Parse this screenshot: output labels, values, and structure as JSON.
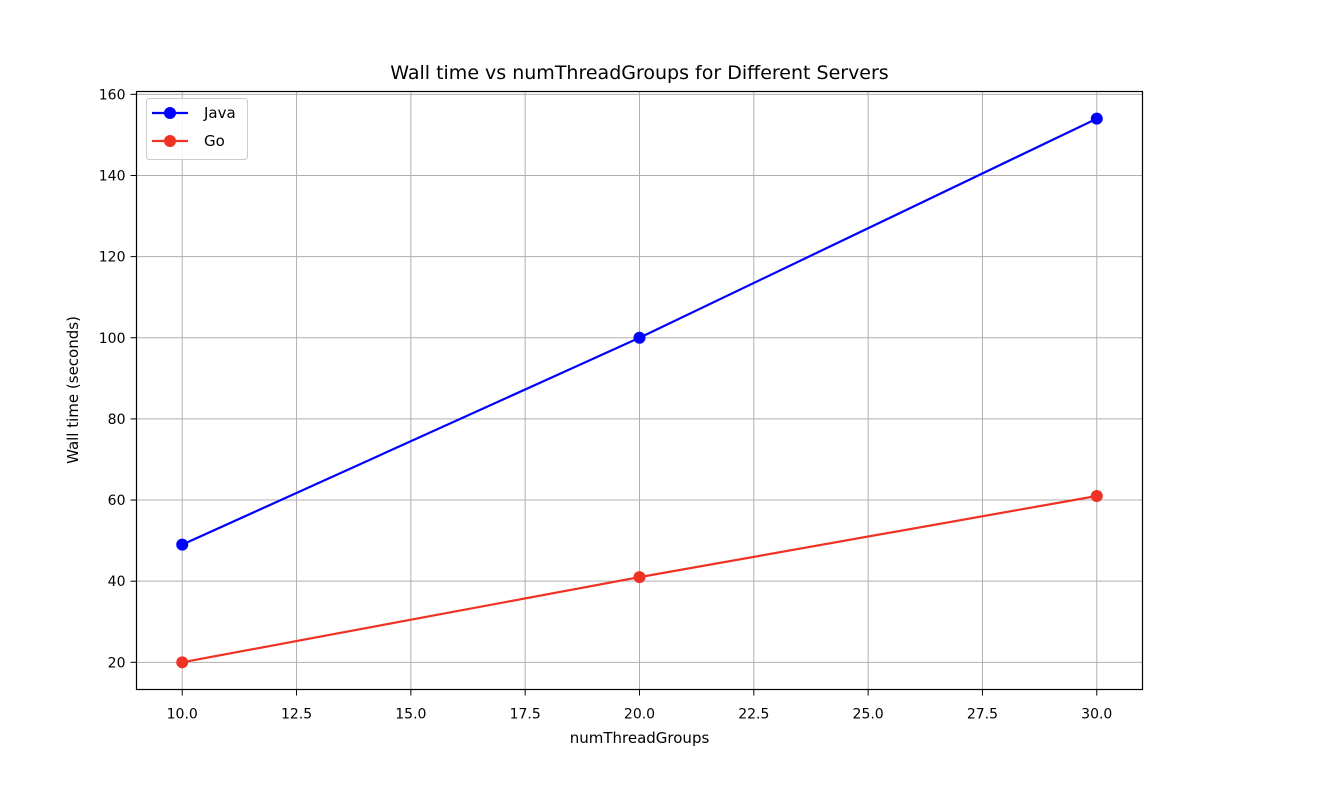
{
  "chart_data": {
    "type": "line",
    "title": "Wall time vs numThreadGroups for Different Servers",
    "xlabel": "numThreadGroups",
    "ylabel": "Wall time (seconds)",
    "xlim": [
      9.0,
      31.0
    ],
    "ylim": [
      13.3,
      160.7
    ],
    "xticks": [
      10.0,
      12.5,
      15.0,
      17.5,
      20.0,
      22.5,
      25.0,
      27.5,
      30.0
    ],
    "xtick_labels": [
      "10.0",
      "12.5",
      "15.0",
      "17.5",
      "20.0",
      "22.5",
      "25.0",
      "27.5",
      "30.0"
    ],
    "yticks": [
      20,
      40,
      60,
      80,
      100,
      120,
      140,
      160
    ],
    "ytick_labels": [
      "20",
      "40",
      "60",
      "80",
      "100",
      "120",
      "140",
      "160"
    ],
    "grid": true,
    "legend_position": "top-left",
    "x": [
      10,
      20,
      30
    ],
    "series": [
      {
        "name": "Java",
        "color": "#0000ff",
        "values": [
          49,
          100,
          154
        ]
      },
      {
        "name": "Go",
        "color": "#ee3224",
        "values": [
          20,
          41,
          61
        ]
      }
    ]
  }
}
